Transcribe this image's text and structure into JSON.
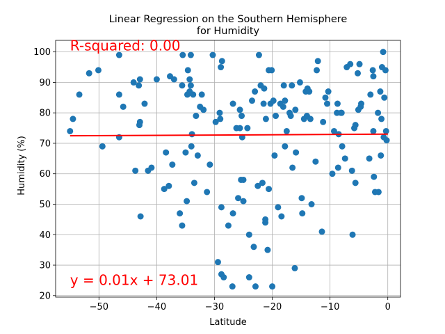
{
  "chart_data": {
    "type": "scatter",
    "title": [
      "Linear Regression on the Southern Hemisphere",
      "for Humidity"
    ],
    "xlabel": "Latitude",
    "ylabel": "Humidity (%)",
    "xlim": [
      -57.5,
      2.2
    ],
    "ylim": [
      19.5,
      103.8
    ],
    "xticks": [
      -50,
      -40,
      -30,
      -20,
      -10,
      0
    ],
    "yticks": [
      20,
      30,
      40,
      50,
      60,
      70,
      80,
      90,
      100
    ],
    "grid": true,
    "point_color": "#1f77b4",
    "line_color": "#ff0000",
    "regression": {
      "slope": 0.01,
      "intercept": 73.01,
      "x_range": [
        -55,
        0
      ]
    },
    "annotations": [
      {
        "text": "R-squared: 0.00",
        "x": -55,
        "y": 100.5,
        "color": "#ff0000"
      },
      {
        "text": "y = 0.01x + 73.01",
        "x": -55,
        "y": 23.5,
        "color": "#ff0000"
      }
    ],
    "points": [
      [
        -55.0,
        74
      ],
      [
        -54.5,
        78
      ],
      [
        -53.4,
        86
      ],
      [
        -51.7,
        93
      ],
      [
        -50.1,
        94
      ],
      [
        -49.4,
        69
      ],
      [
        -46.5,
        99
      ],
      [
        -46.5,
        86
      ],
      [
        -45.8,
        82
      ],
      [
        -46.5,
        72
      ],
      [
        -44.0,
        90
      ],
      [
        -43.7,
        61
      ],
      [
        -43.1,
        89
      ],
      [
        -42.9,
        91
      ],
      [
        -42.9,
        77
      ],
      [
        -43.0,
        76
      ],
      [
        -42.8,
        46
      ],
      [
        -42.1,
        83
      ],
      [
        -41.5,
        61
      ],
      [
        -40.9,
        62
      ],
      [
        -40.0,
        91
      ],
      [
        -38.7,
        55
      ],
      [
        -38.4,
        67
      ],
      [
        -37.9,
        56
      ],
      [
        -37.7,
        92
      ],
      [
        -37.3,
        63
      ],
      [
        -37.0,
        91
      ],
      [
        -36.0,
        47
      ],
      [
        -35.6,
        43
      ],
      [
        -35.6,
        89
      ],
      [
        -35.5,
        99
      ],
      [
        -35.0,
        67
      ],
      [
        -34.8,
        51
      ],
      [
        -34.7,
        86
      ],
      [
        -34.6,
        94
      ],
      [
        -34.3,
        87
      ],
      [
        -34.3,
        91
      ],
      [
        -34.1,
        89
      ],
      [
        -34.1,
        99
      ],
      [
        -34.0,
        69
      ],
      [
        -33.9,
        73
      ],
      [
        -33.7,
        86
      ],
      [
        -33.5,
        57
      ],
      [
        -33.2,
        79
      ],
      [
        -32.9,
        66
      ],
      [
        -32.5,
        82
      ],
      [
        -32.2,
        86
      ],
      [
        -31.9,
        81
      ],
      [
        -31.3,
        54
      ],
      [
        -30.8,
        63
      ],
      [
        -30.3,
        99
      ],
      [
        -29.8,
        77
      ],
      [
        -29.4,
        31
      ],
      [
        -29.1,
        80
      ],
      [
        -29.0,
        78
      ],
      [
        -28.8,
        49
      ],
      [
        -28.8,
        27
      ],
      [
        -28.9,
        95
      ],
      [
        -28.7,
        97
      ],
      [
        -28.4,
        26
      ],
      [
        -27.6,
        43
      ],
      [
        -26.9,
        23
      ],
      [
        -26.8,
        47
      ],
      [
        -26.8,
        83
      ],
      [
        -26.2,
        75
      ],
      [
        -25.9,
        52
      ],
      [
        -25.6,
        75
      ],
      [
        -25.6,
        81
      ],
      [
        -25.4,
        58
      ],
      [
        -25.3,
        79
      ],
      [
        -25.2,
        72
      ],
      [
        -25.0,
        58
      ],
      [
        -25.0,
        51
      ],
      [
        -24.3,
        75
      ],
      [
        -24.0,
        40
      ],
      [
        -24.0,
        26
      ],
      [
        -23.5,
        84
      ],
      [
        -23.2,
        36
      ],
      [
        -23.0,
        87
      ],
      [
        -22.9,
        23
      ],
      [
        -22.5,
        56
      ],
      [
        -22.3,
        99
      ],
      [
        -22.0,
        89
      ],
      [
        -21.7,
        57
      ],
      [
        -21.5,
        83
      ],
      [
        -21.4,
        88
      ],
      [
        -21.2,
        44
      ],
      [
        -21.2,
        45
      ],
      [
        -21.1,
        78
      ],
      [
        -20.8,
        35
      ],
      [
        -20.6,
        55
      ],
      [
        -20.6,
        94
      ],
      [
        -20.3,
        83
      ],
      [
        -20.1,
        94
      ],
      [
        -20.0,
        23
      ],
      [
        -19.8,
        84
      ],
      [
        -19.6,
        66
      ],
      [
        -19.4,
        79
      ],
      [
        -19.0,
        49
      ],
      [
        -18.6,
        83
      ],
      [
        -18.4,
        46
      ],
      [
        -18.1,
        82
      ],
      [
        -18.0,
        89
      ],
      [
        -17.8,
        84
      ],
      [
        -17.8,
        69
      ],
      [
        -17.5,
        74
      ],
      [
        -17.0,
        80
      ],
      [
        -16.8,
        79
      ],
      [
        -16.6,
        89
      ],
      [
        -16.5,
        62
      ],
      [
        -16.1,
        29
      ],
      [
        -16.0,
        81
      ],
      [
        -15.9,
        67
      ],
      [
        -15.2,
        90
      ],
      [
        -14.9,
        52
      ],
      [
        -14.8,
        47
      ],
      [
        -14.5,
        78
      ],
      [
        -14.2,
        87
      ],
      [
        -14.0,
        79
      ],
      [
        -13.9,
        88
      ],
      [
        -13.6,
        87
      ],
      [
        -13.4,
        78
      ],
      [
        -13.2,
        50
      ],
      [
        -12.5,
        64
      ],
      [
        -12.3,
        94
      ],
      [
        -12.1,
        97
      ],
      [
        -11.4,
        41
      ],
      [
        -11.2,
        77
      ],
      [
        -10.8,
        85
      ],
      [
        -10.5,
        83
      ],
      [
        -10.3,
        87
      ],
      [
        -9.6,
        60
      ],
      [
        -9.3,
        74
      ],
      [
        -8.8,
        80
      ],
      [
        -8.7,
        83
      ],
      [
        -8.6,
        62
      ],
      [
        -8.5,
        73
      ],
      [
        -8.1,
        80
      ],
      [
        -8.0,
        80
      ],
      [
        -7.9,
        69
      ],
      [
        -7.4,
        65
      ],
      [
        -7.1,
        95
      ],
      [
        -6.5,
        96
      ],
      [
        -6.2,
        61
      ],
      [
        -6.1,
        40
      ],
      [
        -5.8,
        75
      ],
      [
        -5.6,
        57
      ],
      [
        -5.6,
        76
      ],
      [
        -5.2,
        93
      ],
      [
        -5.1,
        81
      ],
      [
        -4.9,
        96
      ],
      [
        -4.7,
        82
      ],
      [
        -4.6,
        83
      ],
      [
        -3.2,
        65
      ],
      [
        -3.0,
        86
      ],
      [
        -2.6,
        94
      ],
      [
        -2.5,
        92
      ],
      [
        -2.4,
        59
      ],
      [
        -2.2,
        54
      ],
      [
        -2.5,
        74
      ],
      [
        -1.7,
        80
      ],
      [
        -1.6,
        54
      ],
      [
        -1.3,
        87
      ],
      [
        -1.2,
        66
      ],
      [
        -1.1,
        78
      ],
      [
        -1.0,
        95
      ],
      [
        -0.8,
        100
      ],
      [
        -0.7,
        72
      ],
      [
        -0.6,
        85
      ],
      [
        -0.4,
        94
      ],
      [
        -0.3,
        74
      ],
      [
        -0.2,
        71
      ]
    ]
  }
}
